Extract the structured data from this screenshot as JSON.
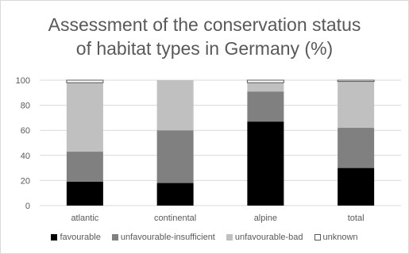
{
  "chart_data": {
    "type": "bar",
    "stacked": true,
    "title_lines": [
      "Assessment of the conservation status",
      "of habitat types in Germany (%)"
    ],
    "categories": [
      "atlantic",
      "continental",
      "alpine",
      "total"
    ],
    "series": [
      {
        "name": "favourable",
        "values": [
          19,
          18,
          67,
          30
        ],
        "color": "#000000"
      },
      {
        "name": "unfavourable-insufficient",
        "values": [
          24,
          42,
          24,
          32
        ],
        "color": "#808080"
      },
      {
        "name": "unfavourable-bad",
        "values": [
          55,
          40,
          7,
          37
        ],
        "color": "#c0c0c0"
      },
      {
        "name": "unknown",
        "values": [
          2,
          0,
          2,
          1
        ],
        "color": "#ffffff"
      }
    ],
    "ylim": [
      0,
      100
    ],
    "yticks": [
      0,
      20,
      40,
      60,
      80,
      100
    ],
    "grid": true,
    "legend_position": "bottom"
  }
}
